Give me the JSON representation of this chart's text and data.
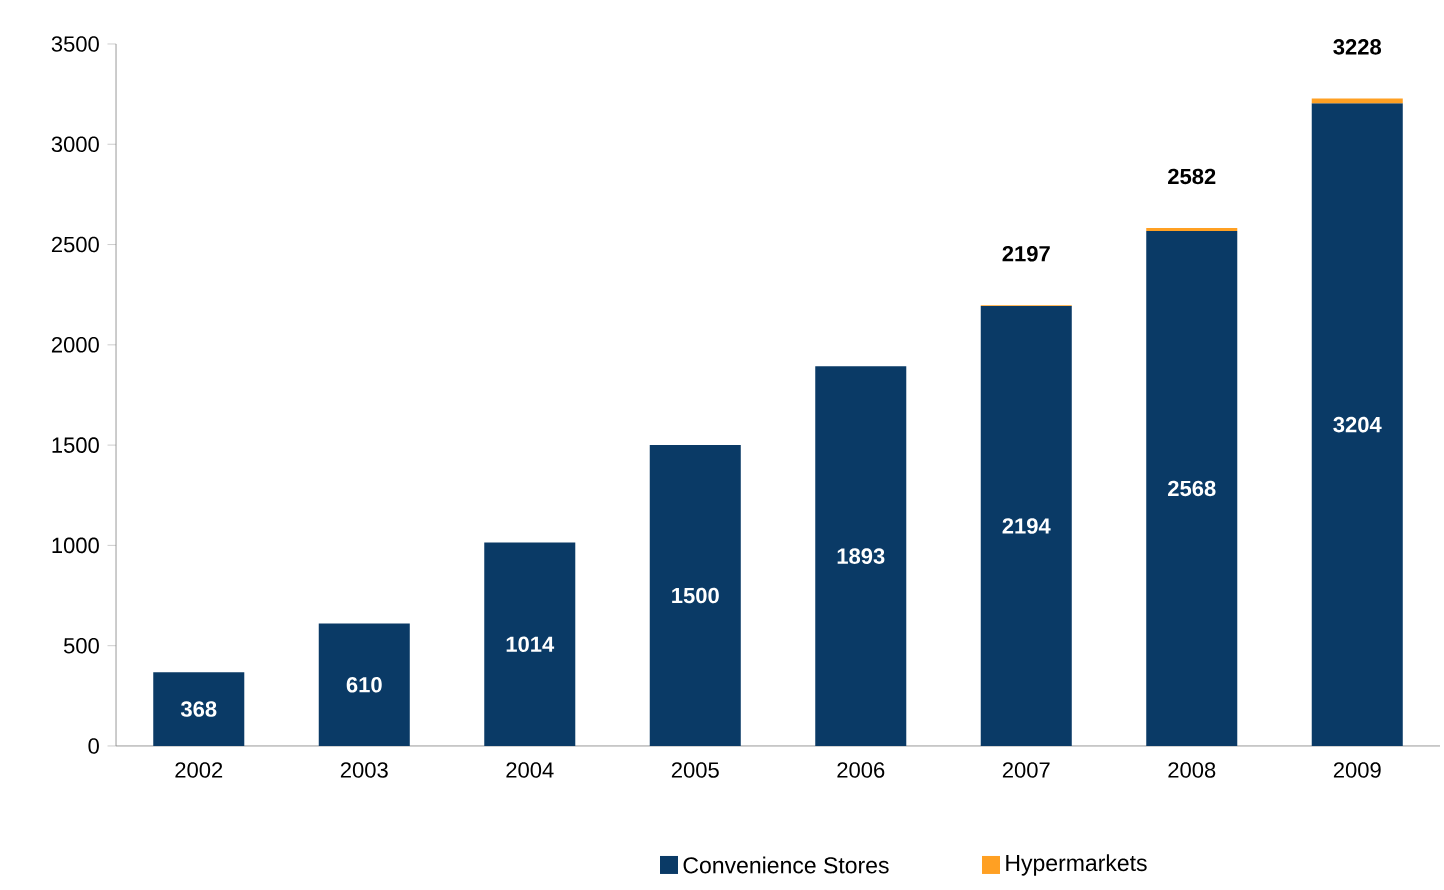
{
  "chart_data": {
    "type": "bar",
    "stacked": true,
    "categories": [
      "2002",
      "2003",
      "2004",
      "2005",
      "2006",
      "2007",
      "2008",
      "2009"
    ],
    "series": [
      {
        "name": "Convenience Stores",
        "color": "#0a3a66",
        "values": [
          368,
          610,
          1014,
          1500,
          1893,
          2194,
          2568,
          3204
        ],
        "value_labels": [
          "368",
          "610",
          "1014",
          "1500",
          "1893",
          "2194",
          "2568",
          "3204"
        ]
      },
      {
        "name": "Hypermarkets",
        "color": "#ffa023",
        "values": [
          null,
          null,
          null,
          null,
          null,
          3,
          14,
          24
        ]
      }
    ],
    "totals": [
      null,
      null,
      null,
      null,
      null,
      "2197",
      "2582",
      "3228"
    ],
    "ylim": [
      0,
      3500
    ],
    "yticks": [
      0,
      500,
      1000,
      1500,
      2000,
      2500,
      3000,
      3500
    ],
    "grid": false,
    "legend": "bottom"
  }
}
